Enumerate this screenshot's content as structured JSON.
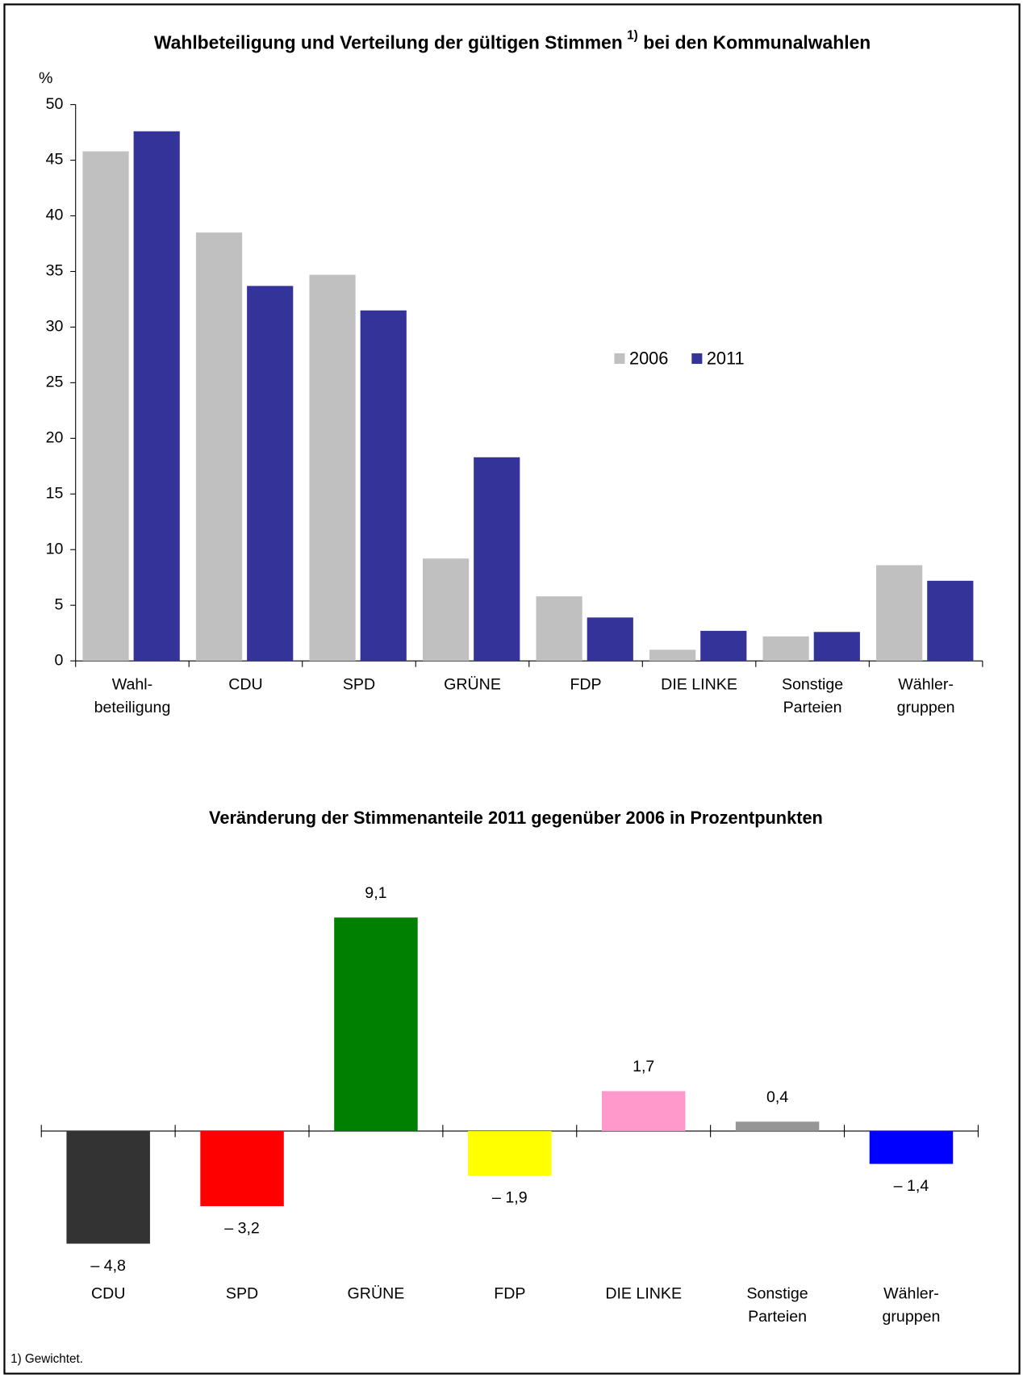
{
  "chart_data": [
    {
      "type": "bar",
      "title": "Wahlbeteiligung und Verteilung der gültigen Stimmen",
      "title_note": "1)",
      "title_end": "bei den Kommunalwahlen",
      "ylabel": "%",
      "categories": [
        [
          "Wahl-",
          "beteiligung"
        ],
        [
          "CDU"
        ],
        [
          "SPD"
        ],
        [
          "GRÜNE"
        ],
        [
          "FDP"
        ],
        [
          "DIE LINKE"
        ],
        [
          "Sonstige",
          "Parteien"
        ],
        [
          "Wähler-",
          "gruppen"
        ]
      ],
      "series": [
        {
          "name": "2006",
          "color": "#c0c0c0",
          "values": [
            45.8,
            38.5,
            34.7,
            9.2,
            5.8,
            1.0,
            2.2,
            8.6
          ]
        },
        {
          "name": "2011",
          "color": "#333399",
          "values": [
            47.6,
            33.7,
            31.5,
            18.3,
            3.9,
            2.7,
            2.6,
            7.2
          ]
        }
      ],
      "ylim": [
        0,
        50
      ],
      "yticks": [
        0,
        5,
        10,
        15,
        20,
        25,
        30,
        35,
        40,
        45,
        50
      ],
      "legend": "right"
    },
    {
      "type": "bar",
      "title": "Veränderung der Stimmenanteile 2011 gegenüber 2006 in Prozentpunkten",
      "categories": [
        [
          "CDU"
        ],
        [
          "SPD"
        ],
        [
          "GRÜNE"
        ],
        [
          "FDP"
        ],
        [
          "DIE LINKE"
        ],
        [
          "Sonstige",
          "Parteien"
        ],
        [
          "Wähler-",
          "gruppen"
        ]
      ],
      "values": [
        -4.8,
        -3.2,
        9.1,
        -1.9,
        1.7,
        0.4,
        -1.4
      ],
      "value_labels": [
        "– 4,8",
        "– 3,2",
        "9,1",
        "– 1,9",
        "1,7",
        "0,4",
        "– 1,4"
      ],
      "colors": [
        "#333333",
        "#ff0000",
        "#008000",
        "#ffff00",
        "#ff99cc",
        "#969696",
        "#0000ff"
      ]
    }
  ],
  "footnote": "1) Gewichtet."
}
